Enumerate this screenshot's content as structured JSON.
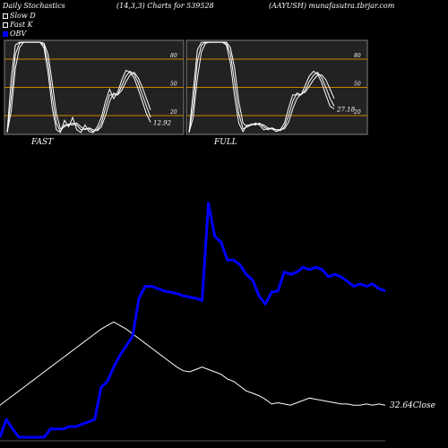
{
  "header": {
    "title": "Daily Stochastics",
    "params": "(14,3,3) Charts for 539528",
    "site": "(AAYUSH) munafasutra.tbrjar.com"
  },
  "legend": {
    "items": [
      {
        "label": "Slow  D",
        "color": "#ffffff",
        "style": "hollow"
      },
      {
        "label": "Fast K",
        "color": "#ffffff",
        "style": "hollow"
      },
      {
        "label": "OBV",
        "color": "#0000ff",
        "style": "filled"
      }
    ]
  },
  "colors": {
    "background": "#000000",
    "panel": "#222222",
    "panel_border": "#808080",
    "level_line": "#cc8400",
    "stoch_line": "#ffffff",
    "obv": "#0000ff",
    "price": "#ffffff"
  },
  "chart_data": [
    {
      "type": "line",
      "title": "FAST",
      "ylim": [
        0,
        100
      ],
      "levels": [
        80,
        50,
        20
      ],
      "tick_labels": [
        "80",
        "50",
        "20"
      ],
      "last_value_label": "12.92",
      "x": [
        0,
        1,
        2,
        3,
        4,
        5,
        6,
        7,
        8,
        9,
        10,
        11,
        12,
        13,
        14,
        15,
        16,
        17,
        18,
        19,
        20,
        21,
        22,
        23,
        24,
        25,
        26,
        27,
        28,
        29,
        30,
        31,
        32,
        33,
        34,
        35
      ],
      "series": [
        {
          "values": [
            2,
            60,
            95,
            98,
            98,
            98,
            98,
            98,
            98,
            92,
            65,
            28,
            5,
            2,
            15,
            8,
            18,
            5,
            2,
            10,
            3,
            2,
            8,
            18,
            35,
            48,
            38,
            45,
            58,
            68,
            66,
            60,
            48,
            35,
            22,
            12.92
          ]
        },
        {
          "values": [
            2,
            40,
            85,
            97,
            98,
            98,
            98,
            98,
            98,
            95,
            75,
            40,
            12,
            3,
            10,
            10,
            12,
            10,
            5,
            6,
            6,
            3,
            5,
            12,
            28,
            42,
            42,
            42,
            52,
            62,
            67,
            64,
            55,
            42,
            30,
            18
          ]
        },
        {
          "values": [
            2,
            25,
            70,
            92,
            98,
            98,
            98,
            98,
            98,
            97,
            85,
            55,
            22,
            6,
            8,
            11,
            10,
            12,
            8,
            5,
            7,
            5,
            4,
            8,
            20,
            35,
            44,
            42,
            47,
            56,
            63,
            66,
            60,
            50,
            38,
            26
          ]
        }
      ]
    },
    {
      "type": "line",
      "title": "FULL",
      "ylim": [
        0,
        100
      ],
      "levels": [
        80,
        50,
        20
      ],
      "tick_labels": [
        "80",
        "50",
        "20"
      ],
      "last_value_label": "27.18",
      "x": [
        0,
        1,
        2,
        3,
        4,
        5,
        6,
        7,
        8,
        9,
        10,
        11,
        12,
        13,
        14,
        15,
        16,
        17,
        18,
        19,
        20,
        21,
        22,
        23,
        24,
        25,
        26,
        27,
        28,
        29,
        30,
        31,
        32,
        33,
        34,
        35
      ],
      "series": [
        {
          "values": [
            2,
            45,
            90,
            98,
            98,
            98,
            98,
            98,
            98,
            95,
            75,
            40,
            12,
            3,
            10,
            10,
            12,
            10,
            5,
            6,
            6,
            3,
            5,
            12,
            28,
            42,
            42,
            42,
            52,
            62,
            67,
            64,
            55,
            42,
            30,
            27.18
          ]
        },
        {
          "values": [
            2,
            30,
            78,
            95,
            98,
            98,
            98,
            98,
            98,
            97,
            85,
            55,
            22,
            6,
            8,
            11,
            10,
            12,
            8,
            5,
            7,
            5,
            4,
            8,
            20,
            35,
            44,
            42,
            47,
            56,
            63,
            66,
            60,
            50,
            38,
            30
          ]
        },
        {
          "values": [
            2,
            18,
            60,
            88,
            97,
            98,
            98,
            98,
            98,
            98,
            92,
            70,
            35,
            12,
            8,
            10,
            11,
            11,
            10,
            7,
            6,
            5,
            5,
            6,
            13,
            27,
            38,
            43,
            45,
            51,
            58,
            63,
            63,
            58,
            48,
            38
          ]
        }
      ]
    },
    {
      "type": "line",
      "title": "",
      "price_label": "32.64Close",
      "x": [
        0,
        1,
        2,
        3,
        4,
        5,
        6,
        7,
        8,
        9,
        10,
        11,
        12,
        13,
        14,
        15,
        16,
        17,
        18,
        19,
        20,
        21,
        22,
        23,
        24,
        25,
        26,
        27,
        28,
        29,
        30,
        31,
        32,
        33,
        34,
        35,
        36,
        37,
        38,
        39,
        40,
        41,
        42,
        43,
        44,
        45,
        46,
        47,
        48,
        49,
        50,
        51,
        52,
        53,
        54,
        55,
        56,
        57,
        58,
        59,
        60,
        61
      ],
      "series": [
        {
          "name": "OBV",
          "color": "#0000ff",
          "values": [
            0.03,
            0.18,
            0.1,
            0.03,
            0.03,
            0.03,
            0.03,
            0.03,
            0.1,
            0.1,
            0.1,
            0.12,
            0.12,
            0.14,
            0.16,
            0.18,
            0.45,
            0.5,
            0.62,
            0.72,
            0.8,
            0.88,
            1.2,
            1.3,
            1.3,
            1.28,
            1.26,
            1.25,
            1.24,
            1.22,
            1.21,
            1.2,
            1.18,
            2.0,
            1.72,
            1.67,
            1.52,
            1.52,
            1.48,
            1.4,
            1.35,
            1.22,
            1.15,
            1.25,
            1.26,
            1.42,
            1.4,
            1.42,
            1.46,
            1.44,
            1.46,
            1.44,
            1.38,
            1.4,
            1.38,
            1.34,
            1.3,
            1.32,
            1.3,
            1.32,
            1.28,
            1.26
          ]
        },
        {
          "name": "Close",
          "color": "#ffffff",
          "values": [
            0.3,
            0.34,
            0.38,
            0.42,
            0.46,
            0.5,
            0.54,
            0.58,
            0.62,
            0.66,
            0.7,
            0.74,
            0.78,
            0.82,
            0.86,
            0.9,
            0.94,
            0.97,
            1.0,
            0.97,
            0.94,
            0.9,
            0.86,
            0.82,
            0.78,
            0.74,
            0.7,
            0.66,
            0.62,
            0.59,
            0.58,
            0.6,
            0.62,
            0.6,
            0.58,
            0.56,
            0.52,
            0.5,
            0.46,
            0.42,
            0.4,
            0.38,
            0.35,
            0.31,
            0.32,
            0.31,
            0.3,
            0.32,
            0.34,
            0.36,
            0.35,
            0.34,
            0.33,
            0.32,
            0.31,
            0.31,
            0.3,
            0.3,
            0.31,
            0.3,
            0.31,
            0.3
          ]
        }
      ]
    }
  ]
}
